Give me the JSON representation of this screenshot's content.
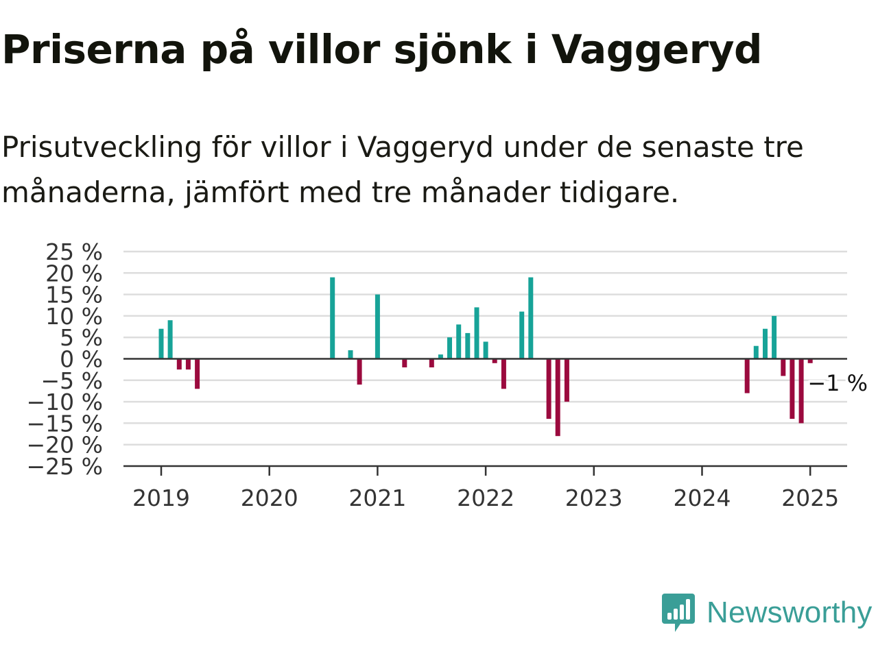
{
  "page": {
    "title": "Priserna på villor sjönk i Vaggeryd",
    "subtitle": "Prisutveckling för villor i Vaggeryd under de senaste tre månaderna, jämfört med tre månader tidigare."
  },
  "brand": {
    "name": "Newsworthy",
    "icon": "newsworthy-logo-icon",
    "color": "#3a9e97"
  },
  "colors": {
    "positive": "#17a398",
    "negative": "#9b0a3e",
    "grid": "#dddddd",
    "axis": "#333333"
  },
  "chart_data": {
    "type": "bar",
    "xlabel": "",
    "ylabel": "",
    "ylim": [
      -25,
      25
    ],
    "yticks": [
      25,
      20,
      15,
      10,
      5,
      0,
      -5,
      -10,
      -15,
      -20,
      -25
    ],
    "ytick_labels": [
      "25 %",
      "20 %",
      "15 %",
      "10 %",
      "5 %",
      "0 %",
      "−5 %",
      "−10 %",
      "−15 %",
      "−20 %",
      "−25 %"
    ],
    "xticks": [
      2019,
      2020,
      2021,
      2022,
      2023,
      2024,
      2025
    ],
    "xtick_labels": [
      "2019",
      "2020",
      "2021",
      "2022",
      "2023",
      "2024",
      "2025"
    ],
    "grid": true,
    "annotation": {
      "label": "−1 %",
      "x": "2025-01",
      "value": -1
    },
    "x": [
      "2019-01",
      "2019-02",
      "2019-03",
      "2019-04",
      "2019-05",
      "2020-08",
      "2020-10",
      "2020-11",
      "2021-01",
      "2021-04",
      "2021-07",
      "2021-08",
      "2021-09",
      "2021-10",
      "2021-11",
      "2021-12",
      "2022-01",
      "2022-02",
      "2022-03",
      "2022-05",
      "2022-06",
      "2022-08",
      "2022-09",
      "2022-10",
      "2024-06",
      "2024-07",
      "2024-08",
      "2024-09",
      "2024-10",
      "2024-11",
      "2024-12",
      "2025-01"
    ],
    "values": [
      7,
      9,
      -2.5,
      -2.5,
      -7,
      19,
      2,
      -6,
      15,
      -2,
      -2,
      1,
      5,
      8,
      6,
      12,
      4,
      -1,
      -7,
      11,
      19,
      -14,
      -18,
      -10,
      -8,
      3,
      7,
      10,
      -4,
      -14,
      -15,
      -1
    ]
  }
}
